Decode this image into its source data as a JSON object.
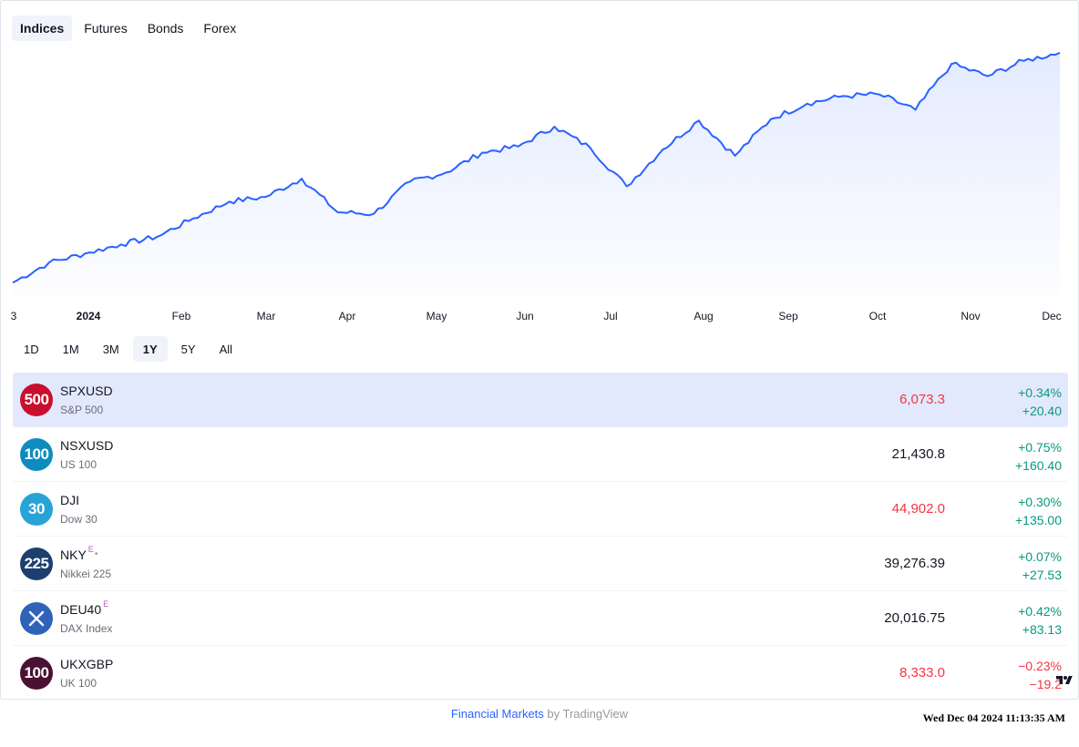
{
  "tabs": [
    "Indices",
    "Futures",
    "Bonds",
    "Forex"
  ],
  "active_tab": 0,
  "chart_data": {
    "type": "area",
    "x_ticks": [
      "3",
      "2024",
      "Feb",
      "Mar",
      "Apr",
      "May",
      "Jun",
      "Jul",
      "Aug",
      "Sep",
      "Oct",
      "Nov",
      "Dec"
    ],
    "y_range": [
      4530,
      6090
    ],
    "x": [
      "Dec 3",
      "Dec 18",
      "Jan 2",
      "Jan 17",
      "Feb 1",
      "Feb 16",
      "Mar 2",
      "Mar 17",
      "Apr 1",
      "Apr 16",
      "May 1",
      "May 16",
      "May 31",
      "Jun 15",
      "Jun 30",
      "Jul 15",
      "Jul 30",
      "Aug 5",
      "Aug 14",
      "Aug 29",
      "Sep 6",
      "Sep 13",
      "Sep 28",
      "Oct 13",
      "Oct 28",
      "Nov 1",
      "Nov 12",
      "Nov 20",
      "Nov 27",
      "Dec 3"
    ],
    "values": [
      4570,
      4700,
      4760,
      4820,
      4870,
      4990,
      5100,
      5130,
      5250,
      5030,
      5020,
      5230,
      5290,
      5420,
      5460,
      5590,
      5450,
      5200,
      5440,
      5630,
      5400,
      5640,
      5740,
      5790,
      5800,
      5700,
      6000,
      5920,
      6020,
      6073
    ]
  },
  "ranges": [
    "1D",
    "1M",
    "3M",
    "1Y",
    "5Y",
    "All"
  ],
  "active_range": 3,
  "rows": [
    {
      "badge": "500",
      "badge_color": "#c8102e",
      "symbol": "SPXUSD",
      "sup": "",
      "dot": "",
      "name": "S&P 500",
      "price": "6,073.3",
      "price_dir": "neg",
      "pct": "+0.34%",
      "abs": "+20.40",
      "chg_dir": "pos",
      "selected": true
    },
    {
      "badge": "100",
      "badge_color": "#0e8bbf",
      "symbol": "NSXUSD",
      "sup": "",
      "dot": "",
      "name": "US 100",
      "price": "21,430.8",
      "price_dir": "neutral",
      "pct": "+0.75%",
      "abs": "+160.40",
      "chg_dir": "pos",
      "selected": false
    },
    {
      "badge": "30",
      "badge_color": "#27a3d8",
      "symbol": "DJI",
      "sup": "",
      "dot": "",
      "name": "Dow 30",
      "price": "44,902.0",
      "price_dir": "neg",
      "pct": "+0.30%",
      "abs": "+135.00",
      "chg_dir": "pos",
      "selected": false
    },
    {
      "badge": "225",
      "badge_color": "#1c3f6e",
      "symbol": "NKY",
      "sup": "E",
      "dot": "•",
      "name": "Nikkei 225",
      "price": "39,276.39",
      "price_dir": "neutral",
      "pct": "+0.07%",
      "abs": "+27.53",
      "chg_dir": "pos",
      "selected": false
    },
    {
      "badge": "",
      "badge_color": "#3063b8",
      "symbol": "DEU40",
      "sup": "E",
      "dot": "",
      "name": "DAX Index",
      "price": "20,016.75",
      "price_dir": "neutral",
      "pct": "+0.42%",
      "abs": "+83.13",
      "chg_dir": "pos",
      "selected": false,
      "badge_icon": "x-mark-icon"
    },
    {
      "badge": "100",
      "badge_color": "#4a1132",
      "symbol": "UKXGBP",
      "sup": "",
      "dot": "",
      "name": "UK 100",
      "price": "8,333.0",
      "price_dir": "neg",
      "pct": "−0.23%",
      "abs": "−19.2",
      "chg_dir": "neg",
      "selected": false
    }
  ],
  "colors": {
    "line": "#2962ff",
    "pos": "#089981",
    "neg": "#f23645"
  },
  "footer": {
    "link": "Financial Markets",
    "suffix": " by TradingView"
  },
  "clock": "Wed Dec 04 2024 11:13:35 AM"
}
